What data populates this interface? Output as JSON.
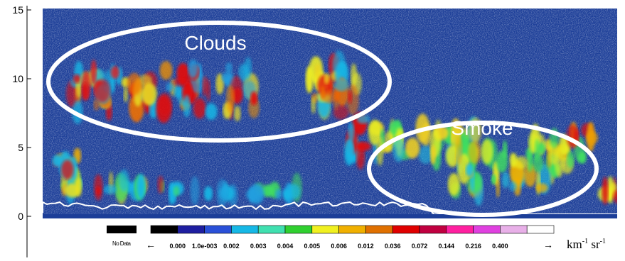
{
  "chart_data": {
    "type": "heatmap",
    "title": "",
    "xlabel": "",
    "ylabel": "",
    "ylim": [
      -1.5,
      15.5
    ],
    "y_ticks": [
      0,
      5,
      10,
      15
    ],
    "y_tick_labels": [
      "0",
      "5",
      "10",
      "15"
    ],
    "annotations": [
      "Clouds",
      "Smoke"
    ],
    "colorbar": {
      "levels": [
        "0.000",
        "1.0e-003",
        "0.002",
        "0.003",
        "0.004",
        "0.005",
        "0.006",
        "0.012",
        "0.036",
        "0.072",
        "0.144",
        "0.216",
        "0.400"
      ],
      "colors": [
        "#000000",
        "#1e1ea0",
        "#2a50d8",
        "#16b8e6",
        "#40e0b0",
        "#30d030",
        "#f0f020",
        "#f0b000",
        "#e07000",
        "#e00000",
        "#c00040",
        "#ff20a0",
        "#e040e0",
        "#e8b0e8",
        "#ffffff"
      ],
      "no_data_label": "No Data",
      "no_data_color": "#000000",
      "unit_main": "km",
      "unit_exp1": "-1",
      "unit_mid": " sr",
      "unit_exp2": "-1",
      "arrow_left": "←",
      "arrow_right": "→"
    },
    "features": [
      {
        "name": "Clouds",
        "y_range": [
          6.5,
          11.5
        ],
        "values": "0.036–0.216"
      },
      {
        "name": "Smoke",
        "y_range": [
          2.5,
          7
        ],
        "values": "0.005–0.012"
      },
      {
        "name": "Surface",
        "y": 0,
        "values": "white"
      }
    ]
  }
}
